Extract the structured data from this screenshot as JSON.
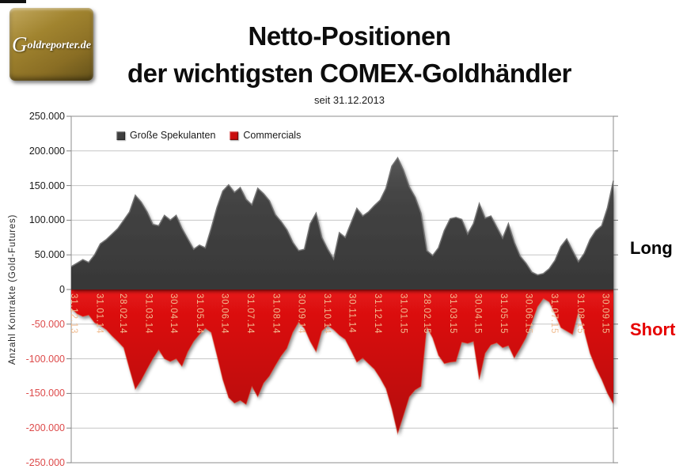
{
  "logo": {
    "text_g": "G",
    "text_rest": "oldreporter.de"
  },
  "title": {
    "line1": "Netto-Positionen",
    "line2": "der wichtigsten COMEX-Goldhändler",
    "subtitle": "seit 31.12.2013"
  },
  "side_labels": {
    "long": "Long",
    "short": "Short"
  },
  "legend": [
    {
      "label": "Große Spekulanten",
      "color": "#3f3f3f"
    },
    {
      "label": "Commercials",
      "color": "#c90e0e"
    }
  ],
  "colors": {
    "speculators_area": "#3f3f3f",
    "commercials_area": "#c90e0e",
    "negative_tick_text": "#dd4a4a",
    "positive_tick_text": "#1a1a1a",
    "date_label_text": "#f1bc90",
    "gridline": "#c6c6c6",
    "frame": "#a0a0a0",
    "short_label": "#e60000"
  },
  "chart_data": {
    "type": "area",
    "title": "Netto-Positionen der wichtigsten COMEX-Goldhändler",
    "subtitle": "seit 31.12.2013",
    "ylabel": "Anzahl Kontrakte (Gold-Futures)",
    "ylim": [
      -250000,
      250000
    ],
    "grid": true,
    "legend_position": "top-left-inside",
    "x_unit": "weekly observations since 31.12.2013",
    "y_ticks": [
      250000,
      200000,
      150000,
      100000,
      50000,
      0,
      -50000,
      -100000,
      -150000,
      -200000,
      -250000
    ],
    "y_tick_labels": [
      "250.000",
      "200.000",
      "150.000",
      "100.000",
      "50.000",
      "0",
      "-50.000",
      "-100.000",
      "-150.000",
      "-200.000",
      "-250.000"
    ],
    "x_tick_labels": [
      "31.12.13",
      "31.01.14",
      "28.02.14",
      "31.03.14",
      "30.04.14",
      "31.05.14",
      "30.06.14",
      "31.07.14",
      "31.08.14",
      "30.09.14",
      "31.10.14",
      "30.11.14",
      "31.12.14",
      "31.01.15",
      "28.02.15",
      "31.03.15",
      "30.04.15",
      "31.05.15",
      "30.06.15",
      "31.07.15",
      "31.08.15",
      "30.09.15"
    ],
    "x_tick_weeks": [
      0,
      4.43,
      8.43,
      12.86,
      17.14,
      21.57,
      25.86,
      30.29,
      34.71,
      39,
      43.43,
      47.71,
      52.14,
      56.57,
      60.57,
      65,
      69.29,
      73.71,
      78,
      82.43,
      86.86,
      91.14
    ],
    "series": [
      {
        "name": "Große Spekulanten",
        "color": "#3f3f3f",
        "values": [
          33000,
          38000,
          43000,
          39000,
          50000,
          66000,
          72000,
          80000,
          88000,
          100000,
          112000,
          136000,
          126000,
          112000,
          94000,
          92000,
          107000,
          100000,
          107000,
          88000,
          73000,
          58000,
          64000,
          60000,
          88000,
          118000,
          142000,
          151000,
          140000,
          147000,
          130000,
          122000,
          146000,
          138000,
          128000,
          108000,
          98000,
          86000,
          68000,
          56000,
          58000,
          95000,
          110000,
          75000,
          58000,
          44000,
          82000,
          75000,
          96000,
          117000,
          106000,
          112000,
          121000,
          129000,
          146000,
          178000,
          190000,
          172000,
          148000,
          133000,
          110000,
          56000,
          49000,
          60000,
          85000,
          102000,
          104000,
          101000,
          80000,
          95000,
          124000,
          103000,
          106000,
          90000,
          74000,
          95000,
          68000,
          48000,
          38000,
          25000,
          21000,
          23000,
          30000,
          42000,
          62000,
          73000,
          56000,
          40000,
          52000,
          72000,
          85000,
          92000,
          118000,
          157000
        ]
      },
      {
        "name": "Commercials",
        "color": "#c90e0e",
        "values": [
          -27000,
          -35000,
          -39000,
          -37000,
          -48000,
          -52000,
          -58000,
          -67000,
          -75000,
          -84000,
          -115000,
          -144000,
          -131000,
          -115000,
          -100000,
          -87000,
          -100000,
          -104000,
          -100000,
          -111000,
          -90000,
          -75000,
          -65000,
          -56000,
          -62000,
          -95000,
          -130000,
          -156000,
          -164000,
          -160000,
          -166000,
          -140000,
          -155000,
          -135000,
          -125000,
          -110000,
          -96000,
          -85000,
          -62000,
          -47000,
          -56000,
          -75000,
          -90000,
          -60000,
          -52000,
          -58000,
          -66000,
          -72000,
          -88000,
          -105000,
          -99000,
          -107000,
          -115000,
          -128000,
          -143000,
          -172000,
          -208000,
          -182000,
          -155000,
          -145000,
          -140000,
          -54000,
          -70000,
          -95000,
          -107000,
          -105000,
          -104000,
          -76000,
          -78000,
          -75000,
          -130000,
          -92000,
          -80000,
          -77000,
          -84000,
          -81000,
          -99000,
          -85000,
          -70000,
          -48000,
          -25000,
          -13000,
          -18000,
          -35000,
          -55000,
          -60000,
          -65000,
          -32000,
          -60000,
          -92000,
          -113000,
          -130000,
          -150000,
          -165000
        ]
      }
    ]
  }
}
